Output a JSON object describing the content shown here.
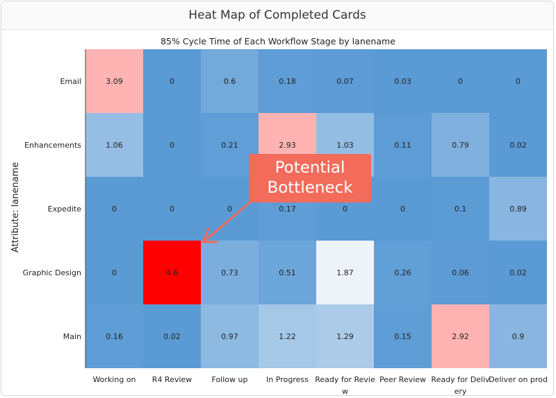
{
  "panel": {
    "title": "Heat Map of Completed Cards"
  },
  "callout": {
    "line1": "Potential",
    "line2": "Bottleneck",
    "color": "#f26b5b"
  },
  "chart_data": {
    "type": "heatmap",
    "title": "85% Cycle Time of Each Workflow Stage by lanename",
    "ylabel": "Attribute: lanename",
    "xlabel": "",
    "x_categories": [
      "Working on",
      "R4 Review",
      "Follow up",
      "In Progress",
      "Ready for Review",
      "Peer Review",
      "Ready for Delivery",
      "Deliver on prod"
    ],
    "x_tick_labels": [
      [
        "Working on"
      ],
      [
        "R4 Review"
      ],
      [
        "Follow up"
      ],
      [
        "In Progress"
      ],
      [
        "Ready for Revie",
        "w"
      ],
      [
        "Peer Review"
      ],
      [
        "Ready for Deliv",
        "ery"
      ],
      [
        "Deliver on prod"
      ]
    ],
    "y_categories": [
      "Email",
      "Enhancements",
      "Expedite",
      "Graphic Design",
      "Main"
    ],
    "values": [
      [
        3.09,
        0,
        0.6,
        0.18,
        0.07,
        0.03,
        0,
        0
      ],
      [
        1.06,
        0,
        0.21,
        2.93,
        1.03,
        0.11,
        0.79,
        0.02
      ],
      [
        0,
        0,
        0,
        0.17,
        0,
        0,
        0.1,
        0.89
      ],
      [
        0,
        4.6,
        0.73,
        0.51,
        1.87,
        0.26,
        0.06,
        0.02
      ],
      [
        0.16,
        0.02,
        0.97,
        1.22,
        1.29,
        0.15,
        2.92,
        0.9
      ]
    ],
    "value_labels": [
      [
        "3.09",
        "0",
        "0.6",
        "0.18",
        "0.07",
        "0.03",
        "0",
        "0"
      ],
      [
        "1.06",
        "0",
        "0.21",
        "2.93",
        "1.03",
        "0.11",
        "0.79",
        "0.02"
      ],
      [
        "0",
        "0",
        "0",
        "0.17",
        "0",
        "0",
        "0.1",
        "0.89"
      ],
      [
        "0",
        "4.6",
        "0.73",
        "0.51",
        "1.87",
        "0.26",
        "0.06",
        "0.02"
      ],
      [
        "0.16",
        "0.02",
        "0.97",
        "1.22",
        "1.29",
        "0.15",
        "2.92",
        "0.9"
      ]
    ],
    "colorscale": {
      "low": "#5b9bd5",
      "mid": "#f2f5fb",
      "high_light": "#ffb3b3",
      "max": "#ff0000"
    },
    "grid": false,
    "legend": "none"
  }
}
